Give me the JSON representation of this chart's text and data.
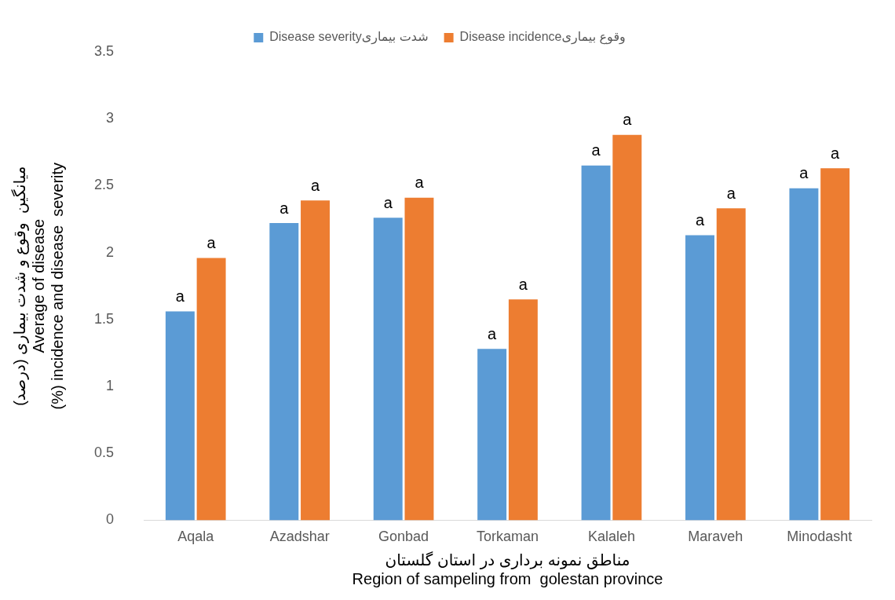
{
  "chart_data": {
    "type": "bar",
    "xlabel": "مناطق نمونه برداری در استان گلستان\nRegion of sampeling from  golestan province",
    "ylabel": "میانگین  وقوع و شدت بیماری (درصد)\nAverage of disease\n(%) incidence and disease  severity",
    "categories": [
      "Aqala",
      "Azadshar",
      "Gonbad",
      "Torkaman",
      "Kalaleh",
      "Maraveh",
      "Minodasht"
    ],
    "series": [
      {
        "name": "Disease severityشدت بیماری",
        "color": "#5b9bd5",
        "values": [
          1.56,
          2.22,
          2.26,
          1.28,
          2.65,
          2.13,
          2.48
        ]
      },
      {
        "name": "Disease incidenceوقوع بیماری",
        "color": "#ed7d31",
        "values": [
          1.96,
          2.39,
          2.41,
          1.65,
          2.88,
          2.33,
          2.63
        ]
      }
    ],
    "ylim": [
      0,
      3.5
    ],
    "yticks": [
      0,
      0.5,
      1,
      1.5,
      2,
      2.5,
      3,
      3.5
    ],
    "grid": false,
    "legend": "top",
    "annotations": [
      {
        "text": "a",
        "x": "Aqala",
        "y": 1.56
      },
      {
        "text": "a",
        "x": "Aqala",
        "y": 1.96
      },
      {
        "text": "a",
        "x": "Azadshar",
        "y": 2.22
      },
      {
        "text": "a",
        "x": "Azadshar",
        "y": 2.39
      },
      {
        "text": "a",
        "x": "Gonbad",
        "y": 2.26
      },
      {
        "text": "a",
        "x": "Gonbad",
        "y": 2.41
      },
      {
        "text": "a",
        "x": "Torkaman",
        "y": 1.28
      },
      {
        "text": "a",
        "x": "Torkaman",
        "y": 1.65
      },
      {
        "text": "a",
        "x": "Kalaleh",
        "y": 2.65
      },
      {
        "text": "a",
        "x": "Kalaleh",
        "y": 2.88
      },
      {
        "text": "a",
        "x": "Maraveh",
        "y": 2.13
      },
      {
        "text": "a",
        "x": "Maraveh",
        "y": 2.33
      },
      {
        "text": "a",
        "x": "Minodasht",
        "y": 2.48
      },
      {
        "text": "a",
        "x": "Minodasht",
        "y": 2.63
      }
    ]
  }
}
